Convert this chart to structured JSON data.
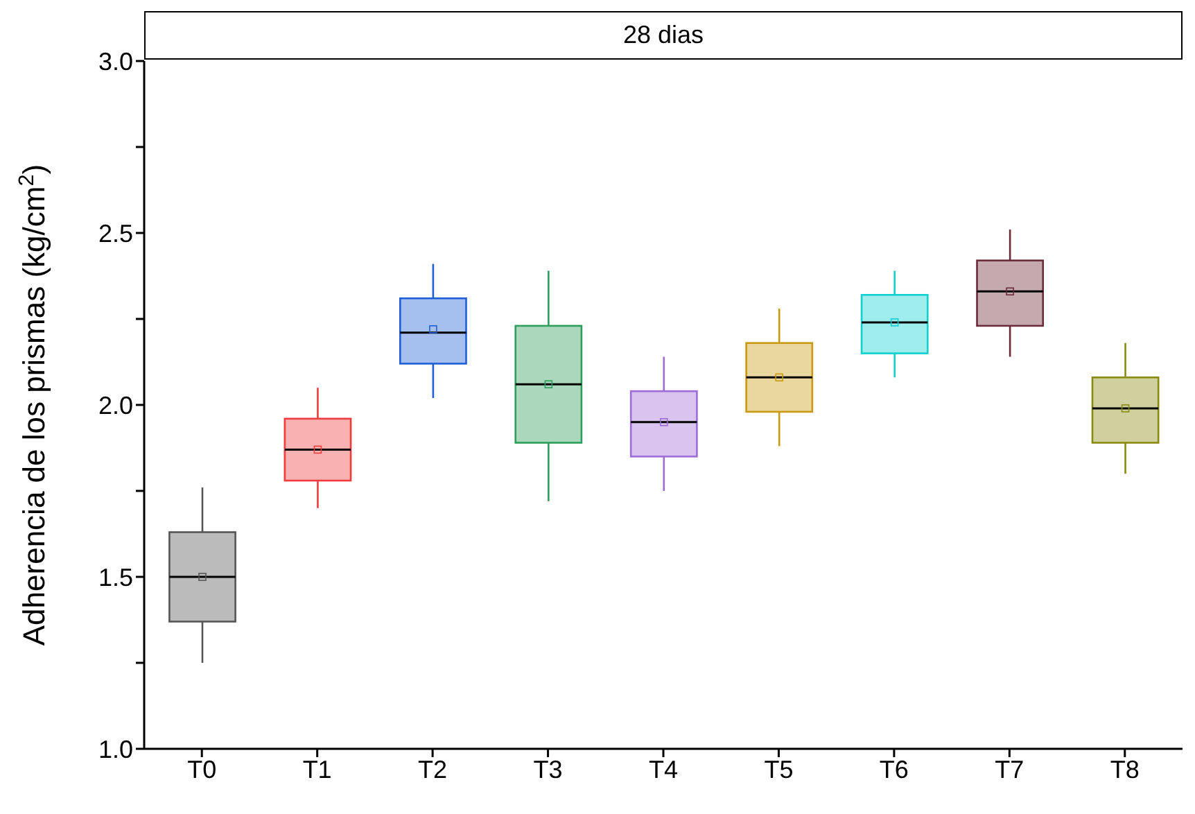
{
  "chart_data": {
    "type": "box",
    "title": "28 dias",
    "ylabel": "Adherencia de los prismas (kg/cm$^{2}$)",
    "categories": [
      "T0",
      "T1",
      "T2",
      "T3",
      "T4",
      "T5",
      "T6",
      "T7",
      "T8"
    ],
    "colors": [
      "#555555",
      "#f03c3c",
      "#1f5fd6",
      "#2e9e5a",
      "#9e6cd8",
      "#c89a10",
      "#10d0d0",
      "#6b2b38",
      "#8a8a10"
    ],
    "boxes": [
      {
        "low": 1.25,
        "q1": 1.37,
        "median": 1.5,
        "q3": 1.63,
        "high": 1.76,
        "mean": 1.5
      },
      {
        "low": 1.7,
        "q1": 1.78,
        "median": 1.87,
        "q3": 1.96,
        "high": 2.05,
        "mean": 1.87
      },
      {
        "low": 2.02,
        "q1": 2.12,
        "median": 2.21,
        "q3": 2.31,
        "high": 2.41,
        "mean": 2.22
      },
      {
        "low": 1.72,
        "q1": 1.89,
        "median": 2.06,
        "q3": 2.23,
        "high": 2.39,
        "mean": 2.06
      },
      {
        "low": 1.75,
        "q1": 1.85,
        "median": 1.95,
        "q3": 2.04,
        "high": 2.14,
        "mean": 1.95
      },
      {
        "low": 1.88,
        "q1": 1.98,
        "median": 2.08,
        "q3": 2.18,
        "high": 2.28,
        "mean": 2.08
      },
      {
        "low": 2.08,
        "q1": 2.15,
        "median": 2.24,
        "q3": 2.32,
        "high": 2.39,
        "mean": 2.24
      },
      {
        "low": 2.14,
        "q1": 2.23,
        "median": 2.33,
        "q3": 2.42,
        "high": 2.51,
        "mean": 2.33
      },
      {
        "low": 1.8,
        "q1": 1.89,
        "median": 1.99,
        "q3": 2.08,
        "high": 2.18,
        "mean": 1.99
      }
    ],
    "ylim": [
      1.0,
      3.0
    ],
    "yticks": [
      {
        "value": 1.0,
        "label": "1.0"
      },
      {
        "value": 1.25,
        "label": null
      },
      {
        "value": 1.5,
        "label": "1.5"
      },
      {
        "value": 1.75,
        "label": null
      },
      {
        "value": 2.0,
        "label": "2.0"
      },
      {
        "value": 2.25,
        "label": null
      },
      {
        "value": 2.5,
        "label": "2.5"
      },
      {
        "value": 2.75,
        "label": null
      },
      {
        "value": 3.0,
        "label": "3.0"
      }
    ],
    "grid": false,
    "legend": false
  }
}
